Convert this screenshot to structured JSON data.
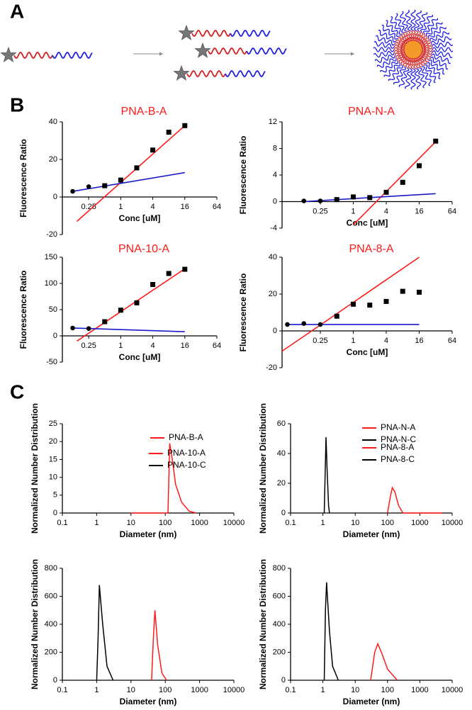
{
  "panel_labels": [
    "A",
    "B",
    "C"
  ],
  "chart_data": [
    {
      "type": "scatter",
      "title": "PNA-B-A",
      "x_label": "Conc [uM]",
      "y_label": "Fluorescence Ratio",
      "xlog_base": 2,
      "xlim": [
        0.08,
        64
      ],
      "xticks": [
        0.25,
        1,
        4,
        16,
        64
      ],
      "ylim": [
        -20,
        40
      ],
      "yticks": [
        -20,
        0,
        20,
        40
      ],
      "points": {
        "color": "#000000",
        "x": [
          0.125,
          0.25,
          0.5,
          1,
          2,
          4,
          8,
          16
        ],
        "values": [
          3,
          5.5,
          6,
          9,
          15.5,
          25,
          34.5,
          38
        ]
      },
      "fit_lines": [
        {
          "color": "#ff1a1a",
          "x": [
            0.15,
            16
          ],
          "values": [
            -13,
            38
          ]
        },
        {
          "color": "#1a1acc",
          "x": [
            0.125,
            16
          ],
          "values": [
            3,
            13
          ]
        }
      ]
    },
    {
      "type": "scatter",
      "title": "PNA-N-A",
      "x_label": "Conc [uM]",
      "y_label": "Fluorescence Ratio",
      "xlog_base": 2,
      "xlim": [
        0.05,
        64
      ],
      "xticks": [
        0.25,
        1,
        4,
        16,
        64
      ],
      "ylim": [
        -4,
        12
      ],
      "yticks": [
        -4,
        0,
        4,
        8,
        12
      ],
      "points": {
        "color": "#000000",
        "x": [
          0.125,
          0.25,
          0.5,
          1,
          2,
          4,
          8,
          16,
          32
        ],
        "values": [
          0.1,
          0.1,
          0.3,
          0.7,
          0.6,
          1.4,
          2.9,
          5.4,
          9.1
        ]
      },
      "fit_lines": [
        {
          "color": "#ff1a1a",
          "x": [
            1,
            32
          ],
          "values": [
            -3.5,
            9
          ]
        },
        {
          "color": "#1a1acc",
          "x": [
            0.125,
            32
          ],
          "values": [
            0,
            1.2
          ]
        }
      ]
    },
    {
      "type": "scatter",
      "title": "PNA-10-A",
      "x_label": "Conc [uM]",
      "y_label": "Fluorescence Ratio",
      "xlog_base": 2,
      "xlim": [
        0.08,
        64
      ],
      "xticks": [
        0.25,
        1,
        4,
        16,
        64
      ],
      "ylim": [
        -50,
        150
      ],
      "yticks": [
        -50,
        0,
        50,
        100,
        150
      ],
      "points": {
        "color": "#000000",
        "x": [
          0.125,
          0.25,
          0.5,
          1,
          2,
          4,
          8,
          16
        ],
        "values": [
          15,
          14,
          27,
          49,
          63,
          98,
          119,
          127
        ]
      },
      "fit_lines": [
        {
          "color": "#ff1a1a",
          "x": [
            0.15,
            16
          ],
          "values": [
            -10,
            128
          ]
        },
        {
          "color": "#1a1acc",
          "x": [
            0.125,
            16
          ],
          "values": [
            15,
            8
          ]
        }
      ]
    },
    {
      "type": "scatter",
      "title": "PNA-8-A",
      "x_label": "Conc [uM]",
      "y_label": "Fluorescence Ratio",
      "xlog_base": 2,
      "xlim": [
        0.05,
        64
      ],
      "xticks": [
        0.25,
        1,
        4,
        16,
        64
      ],
      "ylim": [
        -20,
        40
      ],
      "yticks": [
        -20,
        0,
        20,
        40
      ],
      "points": {
        "color": "#000000",
        "x": [
          0.0625,
          0.125,
          0.25,
          0.5,
          1,
          2,
          4,
          8,
          16
        ],
        "values": [
          3.5,
          4,
          3.5,
          8,
          14.5,
          14,
          16,
          21.5,
          21
        ]
      },
      "fit_lines": [
        {
          "color": "#ff1a1a",
          "x": [
            0.05,
            16
          ],
          "values": [
            -11,
            40
          ]
        },
        {
          "color": "#1a1acc",
          "x": [
            0.0625,
            16
          ],
          "values": [
            3.5,
            3.5
          ]
        }
      ]
    },
    {
      "type": "line",
      "x_label": "Diameter (nm)",
      "y_label": "Normalized Number Distribution",
      "xlog_base": 10,
      "xlim": [
        0.1,
        10000
      ],
      "xticks": [
        0.1,
        1,
        10,
        100,
        1000,
        10000
      ],
      "ylim": [
        0,
        25
      ],
      "yticks": [
        0,
        5,
        10,
        15,
        20,
        25
      ],
      "series": [
        {
          "name": "PNA-B-A",
          "color": "#ff1a1a",
          "x": [
            10,
            100,
            120,
            135,
            160,
            200,
            300,
            500,
            800
          ],
          "values": [
            0,
            0,
            0,
            19.5,
            15,
            8,
            3,
            0.5,
            0
          ]
        }
      ]
    },
    {
      "type": "line",
      "x_label": "Diameter (nm)",
      "y_label": "Normalized Number Distribution",
      "xlog_base": 10,
      "xlim": [
        0.1,
        10000
      ],
      "xticks": [
        0.1,
        1,
        10,
        100,
        1000,
        10000
      ],
      "ylim": [
        0,
        60
      ],
      "yticks": [
        0,
        20,
        40,
        60
      ],
      "series": [
        {
          "name": "PNA-N-A",
          "color": "#ff1a1a",
          "x": [
            100,
            120,
            140,
            170,
            220,
            300,
            5000
          ],
          "values": [
            0,
            10,
            17,
            14,
            5,
            0,
            0
          ]
        },
        {
          "name": "PNA-N-C",
          "color": "#000000",
          "x": [
            1.1,
            1.25,
            1.35,
            1.5,
            1.6
          ],
          "values": [
            0,
            51,
            30,
            5,
            0
          ]
        }
      ]
    },
    {
      "type": "line",
      "x_label": "Diameter (nm)",
      "y_label": "Normalized Number Distribution",
      "xlog_base": 10,
      "xlim": [
        0.1,
        10000
      ],
      "xticks": [
        0.1,
        1,
        10,
        100,
        1000,
        10000
      ],
      "ylim": [
        0,
        800
      ],
      "yticks": [
        0,
        200,
        400,
        600,
        800
      ],
      "series": [
        {
          "name": "PNA-10-A",
          "color": "#ff1a1a",
          "x": [
            40,
            45,
            50,
            60,
            80,
            110
          ],
          "values": [
            0,
            300,
            500,
            250,
            50,
            0
          ]
        },
        {
          "name": "PNA-10-C",
          "color": "#000000",
          "x": [
            1,
            1.1,
            1.2,
            1.5,
            2,
            3
          ],
          "values": [
            0,
            300,
            680,
            400,
            100,
            0
          ]
        }
      ]
    },
    {
      "type": "line",
      "x_label": "Diameter (nm)",
      "y_label": "Normalized Number Distribution",
      "xlog_base": 10,
      "xlim": [
        0.1,
        10000
      ],
      "xticks": [
        0.1,
        1,
        10,
        100,
        1000,
        10000
      ],
      "ylim": [
        0,
        800
      ],
      "yticks": [
        0,
        200,
        400,
        600,
        800
      ],
      "series": [
        {
          "name": "PNA-8-A",
          "color": "#ff1a1a",
          "x": [
            30,
            40,
            50,
            70,
            100,
            200
          ],
          "values": [
            0,
            200,
            260,
            180,
            80,
            0
          ]
        },
        {
          "name": "PNA-8-C",
          "color": "#000000",
          "x": [
            1.1,
            1.2,
            1.3,
            1.6,
            2,
            3
          ],
          "values": [
            0,
            500,
            700,
            350,
            100,
            0
          ]
        }
      ]
    }
  ]
}
